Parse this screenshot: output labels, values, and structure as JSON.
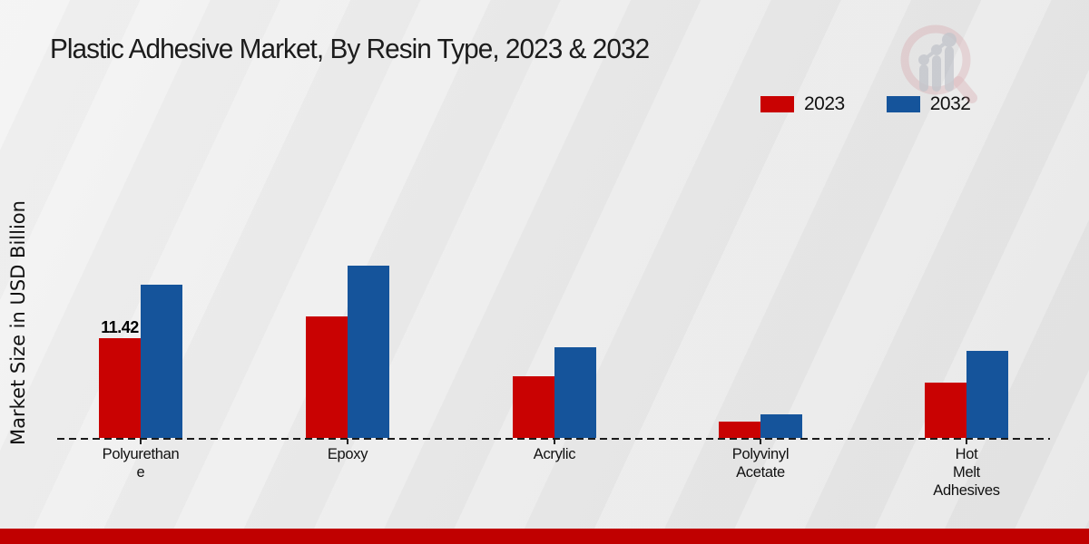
{
  "chart_data": {
    "type": "bar",
    "title": "Plastic Adhesive Market, By Resin Type, 2023 & 2032",
    "ylabel": "Market Size in USD Billion",
    "xlabel": "",
    "categories": [
      "Polyurethane",
      "Epoxy",
      "Acrylic",
      "Polyvinyl Acetate",
      "Hot Melt Adhesives"
    ],
    "category_label_lines": [
      [
        "Polyurethan",
        "e"
      ],
      [
        "Epoxy"
      ],
      [
        "Acrylic"
      ],
      [
        "Polyvinyl",
        "Acetate"
      ],
      [
        "Hot",
        "Melt",
        "Adhesives"
      ]
    ],
    "series": [
      {
        "name": "2023",
        "color": "#c90202",
        "values": [
          11.42,
          13.9,
          7.1,
          1.9,
          6.3
        ]
      },
      {
        "name": "2032",
        "color": "#15549b",
        "values": [
          17.5,
          19.7,
          10.4,
          2.7,
          10.0
        ]
      }
    ],
    "bar_labels": [
      {
        "category_index": 0,
        "series_index": 0,
        "text": "11.42"
      }
    ],
    "ylim": [
      0,
      22
    ],
    "grid": false,
    "legend_position": "top-right",
    "baseline_style": "dashed"
  },
  "footer": {
    "band_color": "#c00000"
  },
  "watermark": {
    "description": "magnifier-bar-chart-logo"
  }
}
